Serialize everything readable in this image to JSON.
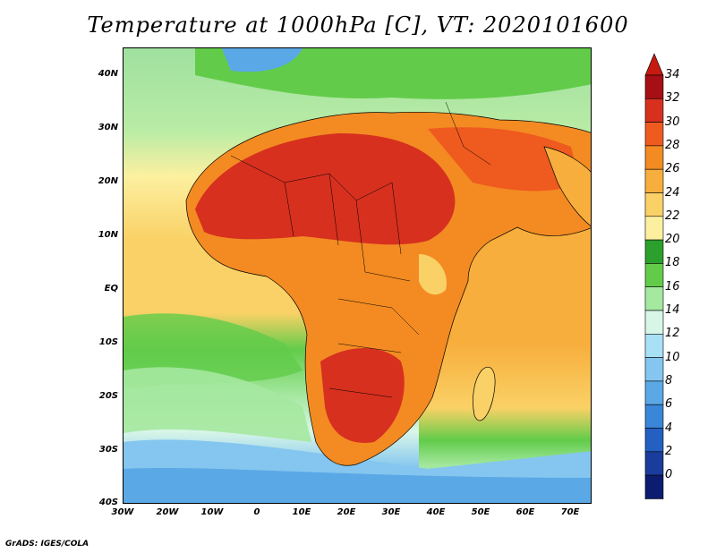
{
  "title": "Temperature at 1000hPa [C], VT: 2020101600",
  "credit": "GrADS: IGES/COLA",
  "map": {
    "lat_labels": [
      "40N",
      "30N",
      "20N",
      "10N",
      "EQ",
      "10S",
      "20S",
      "30S",
      "40S"
    ],
    "lon_labels": [
      "30W",
      "20W",
      "10W",
      "0",
      "10E",
      "20E",
      "30E",
      "40E",
      "50E",
      "60E",
      "70E"
    ],
    "lat_range": [
      -40,
      45
    ],
    "lon_range": [
      -30,
      75
    ]
  },
  "colorbar": {
    "labels": [
      "34",
      "32",
      "30",
      "28",
      "26",
      "24",
      "22",
      "20",
      "18",
      "16",
      "14",
      "12",
      "10",
      "8",
      "6",
      "4",
      "2",
      "0"
    ],
    "colors": [
      "#a50f15",
      "#d7301f",
      "#ef5a1f",
      "#f38b22",
      "#f7ae3c",
      "#fad166",
      "#fcf0a0",
      "#2ca02c",
      "#62cc4a",
      "#a5e8a0",
      "#d8f6e8",
      "#a8e0f5",
      "#84c6ef",
      "#5aa8e6",
      "#3a86d8",
      "#2460c2",
      "#1a3c9c",
      "#0c1c70"
    ],
    "extend_low_color": "#dde0f5",
    "extend_high_color": "#c41a10"
  }
}
